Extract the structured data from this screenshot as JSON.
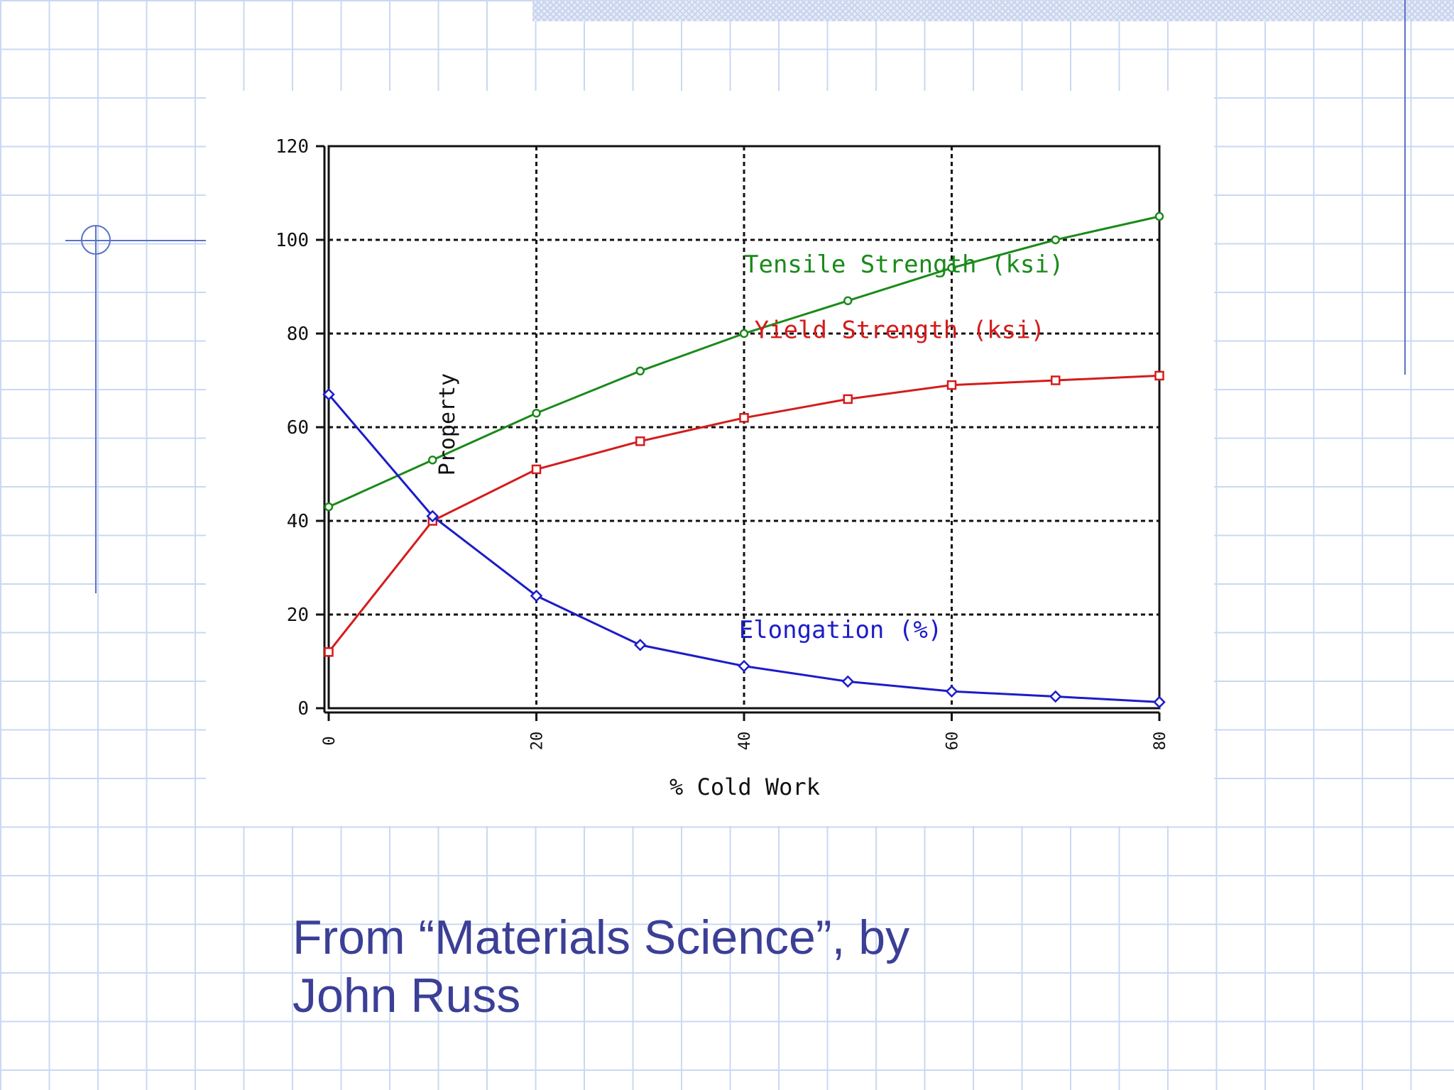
{
  "chart_data": {
    "type": "line",
    "xlabel": "% Cold Work",
    "ylabel": "Property",
    "xlim": [
      0,
      80
    ],
    "ylim": [
      0,
      120
    ],
    "xticks": [
      0,
      20,
      40,
      60,
      80
    ],
    "yticks": [
      0,
      20,
      40,
      60,
      80,
      100,
      120
    ],
    "grid": true,
    "x": [
      0,
      10,
      20,
      30,
      40,
      50,
      60,
      70,
      80
    ],
    "series": [
      {
        "name": "Tensile Strength (ksi)",
        "color": "#1a8a1a",
        "marker": "circle",
        "values": [
          43,
          53,
          63,
          72,
          80,
          87,
          94,
          100,
          105
        ]
      },
      {
        "name": "Yield Strength (ksi)",
        "color": "#d41c1c",
        "marker": "square",
        "values": [
          12,
          40,
          51,
          57,
          62,
          66,
          69,
          70,
          71
        ]
      },
      {
        "name": "Elongation (%)",
        "color": "#1c1cc8",
        "marker": "diamond",
        "values": [
          67,
          41,
          24,
          13.5,
          9,
          5.7,
          3.6,
          2.5,
          1.3
        ]
      }
    ]
  },
  "caption": {
    "line1": "From “Materials Science”, by",
    "line2": "John Russ"
  }
}
